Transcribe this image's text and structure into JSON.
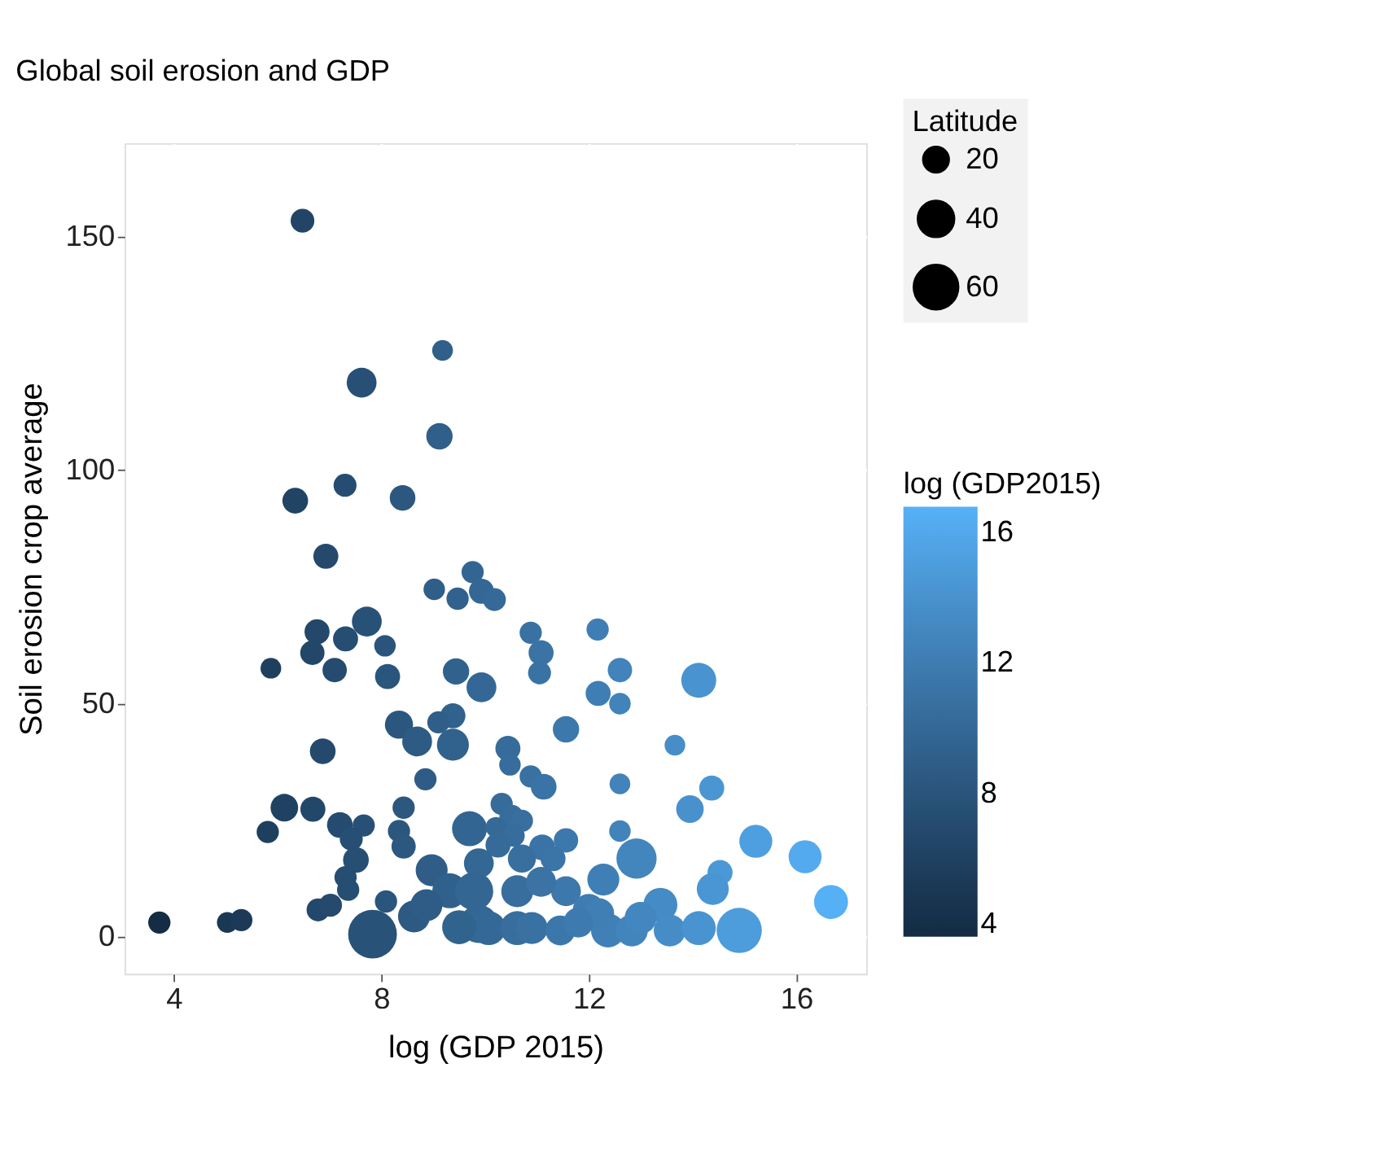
{
  "chart_data": {
    "type": "bubble",
    "title": "Global soil erosion and GDP",
    "xlabel": "log (GDP 2015)",
    "ylabel": "Soil erosion crop average",
    "legend_title": "Latitude",
    "clabel": "log (GDP2015)",
    "x": [
      6.48,
      9.18,
      7.62,
      9.12,
      7.3,
      6.34,
      8.41,
      6.93,
      9.76,
      9.02,
      9.47,
      9.93,
      6.76,
      6.67,
      7.31,
      7.72,
      7.1,
      5.87,
      8.07,
      8.12,
      9.44,
      9.93,
      6.87,
      8.34,
      8.69,
      9.38,
      9.38,
      9.1,
      8.85,
      6.13,
      6.68,
      5.81,
      7.2,
      7.66,
      7.42,
      7.51,
      7.31,
      7.36,
      6.78,
      7.02,
      3.72,
      5.03,
      5.3,
      7.83,
      8.09,
      8.43,
      8.34,
      8.43,
      9.7,
      8.97,
      8.63,
      9.32,
      9.88,
      8.87,
      10.18,
      10.88,
      11.08,
      11.05,
      12.17,
      12.6,
      12.18,
      12.6,
      14.12,
      11.56,
      10.44,
      10.48,
      10.88,
      11.13,
      13.66,
      12.6,
      14.37,
      13.95,
      12.6,
      15.22,
      16.17,
      16.67,
      14.53,
      14.39,
      14.9,
      12.92,
      12.28,
      11.56,
      11.56,
      10.32,
      10.51,
      10.71,
      10.21,
      10.55,
      11.1,
      11.31,
      10.25,
      9.88,
      10.71,
      10.07,
      10.62,
      10.9,
      11.45,
      12.0,
      12.37,
      12.83,
      13.38,
      13.56,
      14.12,
      9.79,
      10.62,
      11.08,
      12.2,
      13.0,
      11.8,
      9.5
    ],
    "values": [
      153.4,
      125.6,
      118.7,
      107.2,
      96.7,
      93.4,
      94.0,
      81.5,
      78.1,
      74.4,
      72.4,
      74.0,
      65.3,
      60.8,
      63.8,
      67.5,
      57.1,
      57.5,
      62.3,
      55.7,
      56.8,
      53.4,
      39.7,
      45.4,
      41.8,
      47.3,
      41.1,
      45.9,
      33.7,
      27.6,
      27.3,
      22.4,
      23.9,
      23.8,
      20.9,
      16.4,
      12.7,
      10.0,
      5.7,
      6.7,
      3.0,
      3.0,
      3.5,
      0.5,
      7.5,
      27.6,
      22.6,
      19.3,
      23.1,
      14.2,
      4.3,
      9.8,
      2.7,
      6.7,
      72.2,
      65.1,
      60.8,
      56.5,
      65.8,
      57.1,
      52.1,
      49.9,
      54.9,
      44.4,
      40.3,
      36.8,
      34.3,
      32.1,
      41.0,
      32.7,
      31.8,
      27.3,
      22.6,
      20.4,
      17.1,
      7.4,
      13.7,
      10.2,
      1.3,
      16.7,
      12.2,
      9.7,
      20.6,
      28.4,
      25.6,
      24.8,
      23.4,
      21.6,
      19.1,
      16.7,
      19.6,
      15.7,
      16.7,
      1.8,
      1.8,
      1.8,
      1.3,
      5.7,
      1.3,
      1.3,
      6.8,
      1.3,
      1.8,
      9.7,
      9.7,
      11.7,
      5.0,
      4.0,
      3.0,
      2.0
    ],
    "sizes": [
      17,
      13,
      27,
      21,
      16,
      20,
      20,
      19,
      15,
      14,
      15,
      19,
      19,
      18,
      19,
      27,
      18,
      13,
      14,
      19,
      21,
      27,
      20,
      24,
      27,
      19,
      31,
      15,
      15,
      23,
      19,
      15,
      20,
      15,
      16,
      20,
      15,
      15,
      16,
      16,
      15,
      13,
      15,
      72,
      15,
      15,
      15,
      18,
      37,
      31,
      31,
      37,
      44,
      31,
      16,
      15,
      19,
      16,
      15,
      18,
      19,
      14,
      37,
      21,
      19,
      14,
      15,
      20,
      13,
      13,
      19,
      23,
      14,
      33,
      33,
      35,
      19,
      31,
      62,
      49,
      31,
      27,
      18,
      15,
      18,
      15,
      13,
      15,
      20,
      19,
      19,
      27,
      24,
      35,
      35,
      31,
      27,
      31,
      35,
      31,
      35,
      31,
      35,
      44,
      31,
      27,
      27,
      31,
      27,
      35
    ],
    "cvalues": [
      6.48,
      9.18,
      7.62,
      9.12,
      7.3,
      6.34,
      8.41,
      6.93,
      9.76,
      9.02,
      9.47,
      9.93,
      6.76,
      6.67,
      7.31,
      7.72,
      7.1,
      5.87,
      8.07,
      8.12,
      9.44,
      9.93,
      6.87,
      8.34,
      8.69,
      9.38,
      9.38,
      9.1,
      8.85,
      6.13,
      6.68,
      5.81,
      7.2,
      7.66,
      7.42,
      7.51,
      7.31,
      7.36,
      6.78,
      7.02,
      3.72,
      5.03,
      5.3,
      7.83,
      8.09,
      8.43,
      8.34,
      8.43,
      9.7,
      8.97,
      8.63,
      9.32,
      9.88,
      8.87,
      10.18,
      10.88,
      11.08,
      11.05,
      12.17,
      12.6,
      12.18,
      12.6,
      14.12,
      11.56,
      10.44,
      10.48,
      10.88,
      11.13,
      13.66,
      12.6,
      14.37,
      13.95,
      12.6,
      15.22,
      16.17,
      16.67,
      14.53,
      14.39,
      14.9,
      12.92,
      12.28,
      11.56,
      11.56,
      10.32,
      10.51,
      10.71,
      10.21,
      10.55,
      11.1,
      11.31,
      10.25,
      9.88,
      10.71,
      10.07,
      10.62,
      10.9,
      11.45,
      12.0,
      12.37,
      12.83,
      13.38,
      13.56,
      14.12,
      9.79,
      10.62,
      11.08,
      12.2,
      13.0,
      11.8,
      9.5
    ],
    "size_legend": [
      20,
      40,
      60
    ],
    "clim": [
      3.6,
      16.8
    ],
    "cticks": [
      4,
      8,
      12,
      16
    ],
    "xlim": [
      3.05,
      17.35
    ],
    "xticks": [
      4,
      8,
      12,
      16
    ],
    "ylim": [
      -8,
      170
    ],
    "yticks": [
      0,
      50,
      100,
      150
    ],
    "grid": true
  }
}
